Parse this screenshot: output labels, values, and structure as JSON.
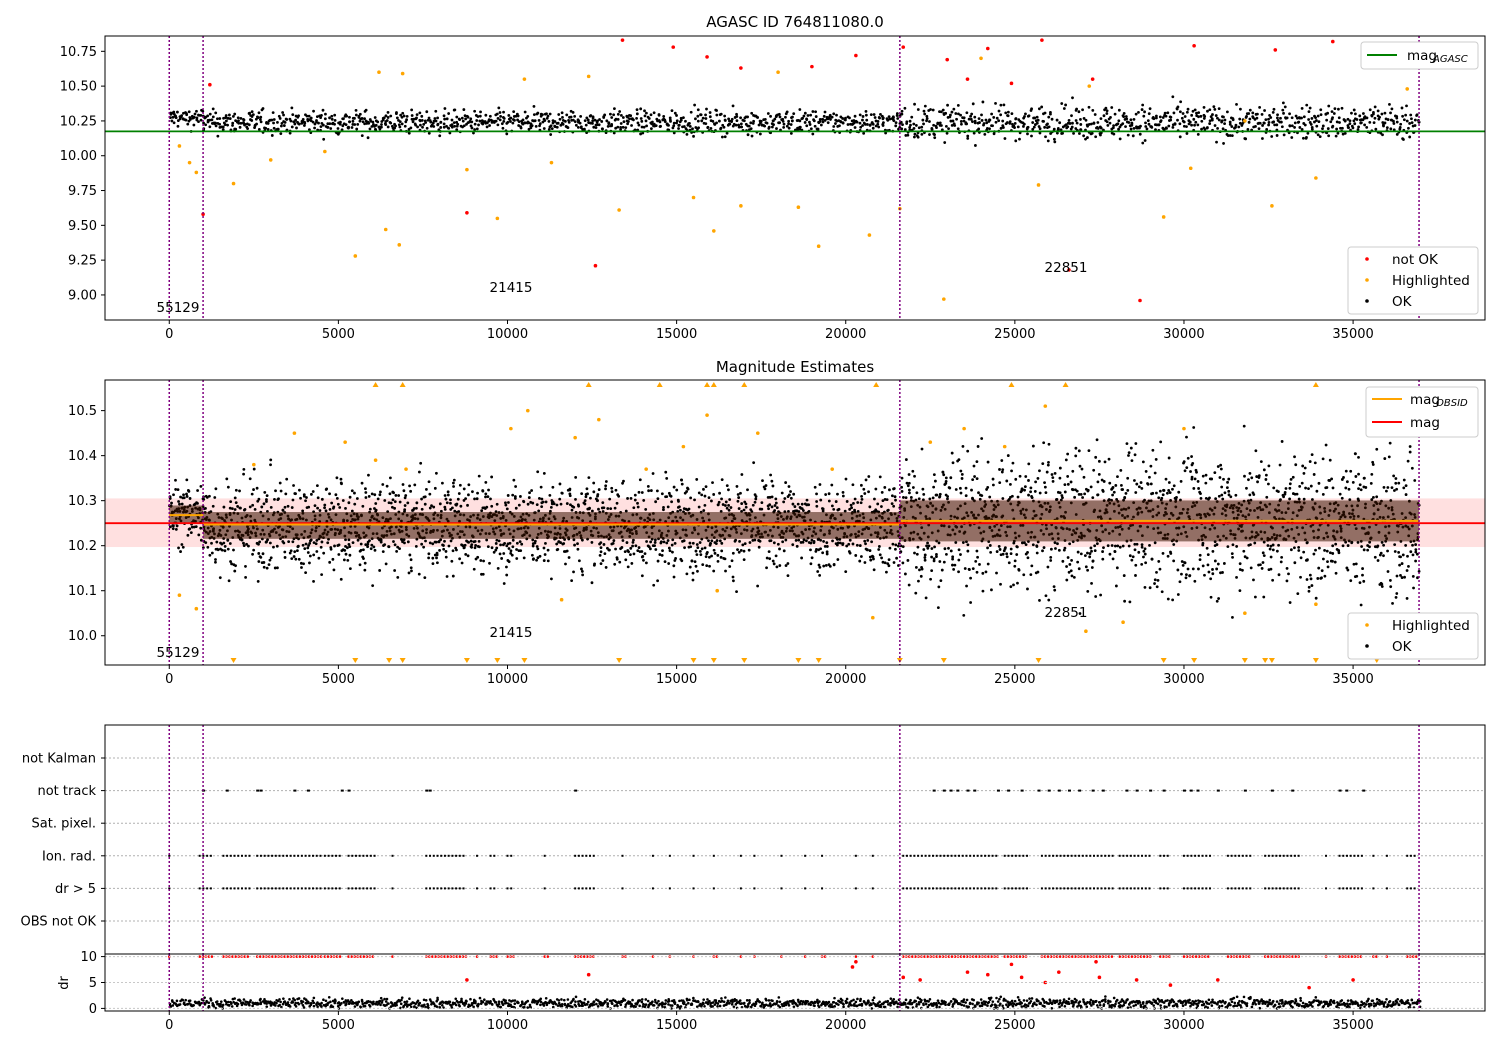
{
  "chart_data": [
    {
      "type": "scatter",
      "title": "AGASC ID 764811080.0",
      "xlim": [
        -1900,
        38900
      ],
      "ylim": [
        8.82,
        10.86
      ],
      "x_ticks": [
        0,
        5000,
        10000,
        15000,
        20000,
        25000,
        30000,
        35000,
        40000
      ],
      "y_ticks": [
        9.0,
        9.25,
        9.5,
        9.75,
        10.0,
        10.25,
        10.5,
        10.75
      ],
      "y_tick_labels": [
        "9.00",
        "9.25",
        "9.50",
        "9.75",
        "10.00",
        "10.25",
        "10.50",
        "10.75"
      ],
      "obsid_boundaries": [
        0,
        1000,
        21600,
        36950
      ],
      "obsid_labels": [
        {
          "text": "55129",
          "x": 500,
          "y": 8.9
        },
        {
          "text": "21415",
          "x": 11300,
          "y": 9.04
        },
        {
          "text": "22851",
          "x": 29300,
          "y": 9.18
        }
      ],
      "series": [
        {
          "name": "mag$_{AGASC}$",
          "kind": "line",
          "color": "#008000",
          "x": [
            -1900,
            38900
          ],
          "y": [
            10.175,
            10.175
          ]
        },
        {
          "name": "not OK",
          "kind": "points",
          "color": "#ff0000",
          "x": [
            1200,
            8800,
            1000,
            12600,
            13400,
            14900,
            15900,
            16900,
            19000,
            20300,
            21700,
            23000,
            23600,
            24200,
            24900,
            25800,
            26600,
            27300,
            28700,
            30300,
            32700,
            34400,
            35600
          ],
          "y": [
            10.51,
            9.59,
            9.58,
            9.21,
            10.83,
            10.78,
            10.71,
            10.63,
            10.64,
            10.72,
            10.78,
            10.69,
            10.55,
            10.77,
            10.52,
            10.83,
            9.18,
            10.55,
            8.96,
            10.79,
            10.76,
            10.82,
            10.69
          ]
        },
        {
          "name": "Highlighted",
          "kind": "points",
          "color": "#ffa500",
          "x": [
            300,
            600,
            800,
            1900,
            3000,
            4600,
            5500,
            6200,
            6400,
            6800,
            6900,
            8800,
            9700,
            10500,
            11300,
            12400,
            13300,
            15500,
            16100,
            16900,
            18000,
            18600,
            19200,
            20700,
            21600,
            22900,
            24000,
            25700,
            27200,
            29400,
            30200,
            31800,
            32600,
            33900,
            35700,
            36600
          ],
          "y": [
            10.07,
            9.95,
            9.88,
            9.8,
            9.97,
            10.03,
            9.28,
            10.6,
            9.47,
            9.36,
            10.59,
            9.9,
            9.55,
            10.55,
            9.95,
            10.57,
            9.61,
            9.7,
            9.46,
            9.64,
            10.6,
            9.63,
            9.35,
            9.43,
            9.62,
            8.97,
            10.7,
            9.79,
            10.5,
            9.56,
            9.91,
            10.25,
            9.64,
            9.84,
            9.32,
            10.48
          ]
        }
      ],
      "band": {
        "name": "OK",
        "color": "#000000",
        "segments": [
          {
            "x0": 0,
            "x1": 1000,
            "center": 10.27,
            "spread": 0.06
          },
          {
            "x0": 1000,
            "x1": 21600,
            "center": 10.24,
            "spread": 0.07
          },
          {
            "x0": 21600,
            "x1": 36950,
            "center": 10.24,
            "spread": 0.1
          }
        ]
      },
      "legend": [
        {
          "label": "mag",
          "sub": "AGASC",
          "kind": "line",
          "color": "#008000",
          "position": "upper right"
        },
        {
          "label": "not OK",
          "kind": "point",
          "color": "#ff0000",
          "position": "lower right"
        },
        {
          "label": "Highlighted",
          "kind": "point",
          "color": "#ffa500",
          "position": "lower right"
        },
        {
          "label": "OK",
          "kind": "point",
          "color": "#000000",
          "position": "lower right"
        }
      ]
    },
    {
      "type": "scatter",
      "title": "Magnitude Estimates",
      "xlim": [
        -1900,
        38900
      ],
      "ylim": [
        9.935,
        10.568
      ],
      "x_ticks": [
        0,
        5000,
        10000,
        15000,
        20000,
        25000,
        30000,
        35000,
        40000
      ],
      "y_ticks": [
        10.0,
        10.1,
        10.2,
        10.3,
        10.4,
        10.5
      ],
      "y_tick_labels": [
        "10.0",
        "10.1",
        "10.2",
        "10.3",
        "10.4",
        "10.5"
      ],
      "obsid_boundaries": [
        0,
        1000,
        21600,
        36950
      ],
      "obsid_labels": [
        {
          "text": "55129",
          "x": 500,
          "y": 9.955
        },
        {
          "text": "21415",
          "x": 11300,
          "y": 10.0
        },
        {
          "text": "22851",
          "x": 29300,
          "y": 10.045
        }
      ],
      "mag": 10.25,
      "mag_band": [
        10.197,
        10.305
      ],
      "mag_obsid": [
        {
          "x0": 0,
          "x1": 1000,
          "y": 10.268
        },
        {
          "x0": 1000,
          "x1": 21600,
          "y": 10.247
        },
        {
          "x0": 21600,
          "x1": 36950,
          "y": 10.255
        }
      ],
      "series": [
        {
          "name": "mag$_{OBSID}$",
          "kind": "step",
          "color": "#ffa500"
        },
        {
          "name": "mag",
          "kind": "line",
          "color": "#ff0000",
          "x": [
            -1900,
            38900
          ],
          "y": [
            10.25,
            10.25
          ]
        },
        {
          "name": "Highlighted",
          "kind": "points",
          "color": "#ffa500",
          "x": [
            300,
            800,
            2500,
            3700,
            5200,
            6100,
            7000,
            10100,
            10600,
            11600,
            12000,
            12700,
            14100,
            15200,
            15900,
            16200,
            17400,
            19600,
            20800,
            22500,
            23500,
            24700,
            25900,
            27100,
            28200,
            30000,
            31800,
            33900,
            34900,
            35500,
            36600
          ],
          "y": [
            10.09,
            10.06,
            10.38,
            10.45,
            10.43,
            10.39,
            10.37,
            10.46,
            10.5,
            10.08,
            10.44,
            10.48,
            10.37,
            10.42,
            10.49,
            10.1,
            10.45,
            10.37,
            10.04,
            10.43,
            10.46,
            10.42,
            10.51,
            10.01,
            10.03,
            10.46,
            10.05,
            10.07,
            9.98,
            10.45,
            10.5
          ]
        },
        {
          "name": "Highlighted (clipped)",
          "kind": "markers",
          "color": "#ffa500",
          "top_x": [
            6100,
            6900,
            12400,
            14500,
            15900,
            16100,
            17000,
            20900,
            24900,
            26500,
            33900
          ],
          "bottom_x": [
            1900,
            5500,
            6500,
            6900,
            8800,
            9700,
            10500,
            13300,
            15500,
            16100,
            17000,
            18600,
            19200,
            21600,
            22900,
            25700,
            29400,
            30300,
            31800,
            32400,
            32600,
            33900,
            35700
          ]
        }
      ],
      "band": {
        "name": "OK",
        "color": "#000000",
        "segments": [
          {
            "x0": 0,
            "x1": 1000,
            "center": 10.27,
            "spread": 0.055
          },
          {
            "x0": 1000,
            "x1": 21600,
            "center": 10.245,
            "spread": 0.085
          },
          {
            "x0": 21600,
            "x1": 36950,
            "center": 10.255,
            "spread": 0.13
          }
        ]
      },
      "legend": [
        {
          "label": "mag",
          "sub": "OBSID",
          "kind": "line",
          "color": "#ffa500",
          "position": "upper right"
        },
        {
          "label": "mag",
          "kind": "line",
          "color": "#ff0000",
          "position": "upper right"
        },
        {
          "label": "Highlighted",
          "kind": "point",
          "color": "#ffa500",
          "position": "lower right"
        },
        {
          "label": "OK",
          "kind": "point",
          "color": "#000000",
          "position": "lower right"
        }
      ]
    },
    {
      "type": "scatter",
      "title": "",
      "xlim": [
        -1900,
        38900
      ],
      "categories": [
        "not Kalman",
        "not track",
        "Sat. pixel.",
        "Ion. rad.",
        "dr > 5",
        "OBS not OK"
      ],
      "obsid_boundaries": [
        0,
        1000,
        21600,
        36950
      ],
      "flags": {
        "not Kalman": [],
        "not track": [
          1000,
          1700,
          2600,
          2700,
          3700,
          4100,
          5100,
          5300,
          7600,
          7700,
          12000,
          22600,
          22900,
          23100,
          23300,
          23600,
          23800,
          24500,
          24800,
          25200,
          25700,
          26000,
          26300,
          26600,
          26900,
          27300,
          27600,
          28300,
          28600,
          29000,
          29400,
          30000,
          30200,
          30400,
          31000,
          31800,
          32600,
          33200,
          34600,
          34800,
          35300
        ]
      },
      "flag_ranges": {
        "Ion. rad.": [
          [
            0,
            0
          ],
          [
            900,
            1300
          ],
          [
            1600,
            2400
          ],
          [
            2600,
            4500
          ],
          [
            4600,
            5100
          ],
          [
            5300,
            6100
          ],
          [
            6600,
            6600
          ],
          [
            7600,
            8800
          ],
          [
            9100,
            9100
          ],
          [
            9500,
            9700
          ],
          [
            10000,
            10200
          ],
          [
            11100,
            11200
          ],
          [
            12000,
            12600
          ],
          [
            13400,
            13500
          ],
          [
            14300,
            14300
          ],
          [
            14800,
            14800
          ],
          [
            15500,
            15500
          ],
          [
            16100,
            16200
          ],
          [
            16900,
            16900
          ],
          [
            17300,
            17300
          ],
          [
            18100,
            18100
          ],
          [
            18800,
            18800
          ],
          [
            19300,
            19400
          ],
          [
            20300,
            20300
          ],
          [
            20800,
            20800
          ],
          [
            21700,
            24500
          ],
          [
            24700,
            25400
          ],
          [
            25800,
            27900
          ],
          [
            28100,
            29000
          ],
          [
            29300,
            29600
          ],
          [
            30000,
            30800
          ],
          [
            31300,
            32000
          ],
          [
            32400,
            33400
          ],
          [
            34200,
            34200
          ],
          [
            34600,
            35300
          ],
          [
            35600,
            35700
          ],
          [
            36000,
            36000
          ],
          [
            36600,
            36900
          ]
        ],
        "dr > 5": [
          [
            0,
            0
          ],
          [
            900,
            1300
          ],
          [
            1600,
            2400
          ],
          [
            2600,
            4500
          ],
          [
            4600,
            5100
          ],
          [
            5300,
            6100
          ],
          [
            6600,
            6600
          ],
          [
            7600,
            8800
          ],
          [
            9100,
            9100
          ],
          [
            9500,
            9700
          ],
          [
            10000,
            10200
          ],
          [
            11100,
            11200
          ],
          [
            12000,
            12600
          ],
          [
            13400,
            13500
          ],
          [
            14300,
            14300
          ],
          [
            14800,
            14800
          ],
          [
            15500,
            15500
          ],
          [
            16100,
            16200
          ],
          [
            16900,
            16900
          ],
          [
            17300,
            17300
          ],
          [
            18100,
            18100
          ],
          [
            18800,
            18800
          ],
          [
            19300,
            19400
          ],
          [
            20300,
            20300
          ],
          [
            20800,
            20800
          ],
          [
            21700,
            24500
          ],
          [
            24700,
            25400
          ],
          [
            25800,
            27900
          ],
          [
            28100,
            29000
          ],
          [
            29300,
            29600
          ],
          [
            30000,
            30800
          ],
          [
            31300,
            32000
          ],
          [
            32400,
            33400
          ],
          [
            34200,
            34200
          ],
          [
            34600,
            35300
          ],
          [
            35600,
            35700
          ],
          [
            36000,
            36000
          ],
          [
            36600,
            36900
          ]
        ]
      }
    },
    {
      "type": "scatter",
      "title": "",
      "ylabel": "dr",
      "xlim": [
        -1900,
        38900
      ],
      "ylim": [
        -0.5,
        10.5
      ],
      "x_ticks": [
        0,
        5000,
        10000,
        15000,
        20000,
        25000,
        30000,
        35000,
        40000
      ],
      "y_ticks": [
        0,
        5,
        10
      ],
      "y_tick_labels": [
        "0",
        "5",
        "10"
      ],
      "obsid_boundaries": [
        0,
        1000,
        21600,
        36950
      ],
      "series": [
        {
          "name": "dr (OK)",
          "kind": "band",
          "color": "#000000",
          "center": 1.0,
          "spread": 0.9
        },
        {
          "name": "dr (not OK)",
          "kind": "points",
          "color": "#ff0000",
          "x": [
            8800,
            12400,
            20200,
            20300,
            21700,
            22200,
            23600,
            24200,
            24900,
            25200,
            25900,
            26300,
            27400,
            27500,
            28600,
            29600,
            31000,
            33700,
            35000
          ],
          "y": [
            5.5,
            6.5,
            8.0,
            9.0,
            6.0,
            5.5,
            7.0,
            6.5,
            8.5,
            6.0,
            5.0,
            7.0,
            9.0,
            6.0,
            5.5,
            4.5,
            5.5,
            4.0,
            5.5
          ]
        }
      ]
    }
  ]
}
